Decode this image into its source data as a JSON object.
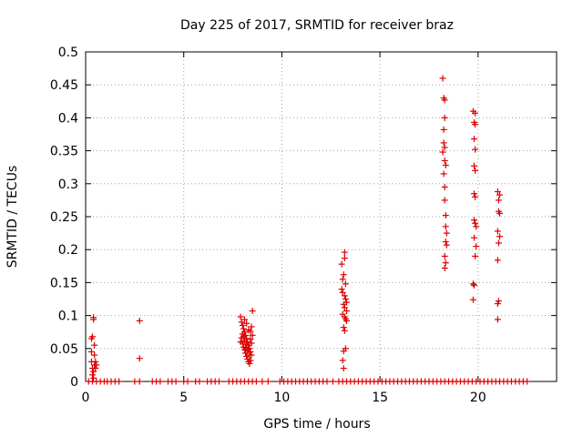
{
  "chart_data": {
    "type": "scatter",
    "title": "Day 225 of 2017, SRMTID for receiver braz",
    "xlabel": "GPS time / hours",
    "ylabel": "SRMTID / TECUs",
    "xlim": [
      0,
      24
    ],
    "ylim": [
      0,
      0.5
    ],
    "xticks": [
      0,
      5,
      10,
      15,
      20
    ],
    "xtick_labels": [
      "0",
      "5",
      "10",
      "15",
      "20"
    ],
    "yticks": [
      0,
      0.05,
      0.1,
      0.15,
      0.2,
      0.25,
      0.3,
      0.35,
      0.4,
      0.45,
      0.5
    ],
    "ytick_labels": [
      "0",
      "0.05",
      "0.1",
      "0.15",
      "0.2",
      "0.25",
      "0.3",
      "0.35",
      "0.4",
      "0.45",
      "0.5"
    ],
    "grid": true,
    "marker": "+",
    "marker_color": "#dd0000",
    "series": [
      {
        "name": "SRMTID",
        "points": [
          [
            0.15,
            0.0
          ],
          [
            0.35,
            0.0
          ],
          [
            0.55,
            0.0
          ],
          [
            0.75,
            0.0
          ],
          [
            0.95,
            0.0
          ],
          [
            1.1,
            0.0
          ],
          [
            1.3,
            0.0
          ],
          [
            1.5,
            0.0
          ],
          [
            1.7,
            0.0
          ],
          [
            2.5,
            0.0
          ],
          [
            2.75,
            0.0
          ],
          [
            3.4,
            0.0
          ],
          [
            3.6,
            0.0
          ],
          [
            3.8,
            0.0
          ],
          [
            4.2,
            0.0
          ],
          [
            4.4,
            0.0
          ],
          [
            4.6,
            0.0
          ],
          [
            5.0,
            0.0
          ],
          [
            5.2,
            0.0
          ],
          [
            5.6,
            0.0
          ],
          [
            5.8,
            0.0
          ],
          [
            6.2,
            0.0
          ],
          [
            6.4,
            0.0
          ],
          [
            6.6,
            0.0
          ],
          [
            6.8,
            0.0
          ],
          [
            7.3,
            0.0
          ],
          [
            7.5,
            0.0
          ],
          [
            7.7,
            0.0
          ],
          [
            7.9,
            0.0
          ],
          [
            8.1,
            0.0
          ],
          [
            8.3,
            0.0
          ],
          [
            8.5,
            0.0
          ],
          [
            8.7,
            0.0
          ],
          [
            9.0,
            0.0
          ],
          [
            9.3,
            0.0
          ],
          [
            9.9,
            0.0
          ],
          [
            10.1,
            0.0
          ],
          [
            10.3,
            0.0
          ],
          [
            10.5,
            0.0
          ],
          [
            10.7,
            0.0
          ],
          [
            10.9,
            0.0
          ],
          [
            11.1,
            0.0
          ],
          [
            11.3,
            0.0
          ],
          [
            11.5,
            0.0
          ],
          [
            11.7,
            0.0
          ],
          [
            11.9,
            0.0
          ],
          [
            12.1,
            0.0
          ],
          [
            12.3,
            0.0
          ],
          [
            12.6,
            0.0
          ],
          [
            12.9,
            0.0
          ],
          [
            13.1,
            0.0
          ],
          [
            13.3,
            0.0
          ],
          [
            13.5,
            0.0
          ],
          [
            13.7,
            0.0
          ],
          [
            13.9,
            0.0
          ],
          [
            14.1,
            0.0
          ],
          [
            14.3,
            0.0
          ],
          [
            14.5,
            0.0
          ],
          [
            14.7,
            0.0
          ],
          [
            14.9,
            0.0
          ],
          [
            15.1,
            0.0
          ],
          [
            15.3,
            0.0
          ],
          [
            15.5,
            0.0
          ],
          [
            15.7,
            0.0
          ],
          [
            15.9,
            0.0
          ],
          [
            16.1,
            0.0
          ],
          [
            16.3,
            0.0
          ],
          [
            16.5,
            0.0
          ],
          [
            16.7,
            0.0
          ],
          [
            16.9,
            0.0
          ],
          [
            17.1,
            0.0
          ],
          [
            17.3,
            0.0
          ],
          [
            17.5,
            0.0
          ],
          [
            17.7,
            0.0
          ],
          [
            17.9,
            0.0
          ],
          [
            18.1,
            0.0
          ],
          [
            18.3,
            0.0
          ],
          [
            18.5,
            0.0
          ],
          [
            18.7,
            0.0
          ],
          [
            18.9,
            0.0
          ],
          [
            19.1,
            0.0
          ],
          [
            19.3,
            0.0
          ],
          [
            19.5,
            0.0
          ],
          [
            19.7,
            0.0
          ],
          [
            19.9,
            0.0
          ],
          [
            20.1,
            0.0
          ],
          [
            20.3,
            0.0
          ],
          [
            20.5,
            0.0
          ],
          [
            20.7,
            0.0
          ],
          [
            20.9,
            0.0
          ],
          [
            21.1,
            0.0
          ],
          [
            21.3,
            0.0
          ],
          [
            21.5,
            0.0
          ],
          [
            21.7,
            0.0
          ],
          [
            21.9,
            0.0
          ],
          [
            22.1,
            0.0
          ],
          [
            22.3,
            0.0
          ],
          [
            22.5,
            0.0
          ],
          [
            0.3,
            0.065
          ],
          [
            0.35,
            0.068
          ],
          [
            0.4,
            0.097
          ],
          [
            0.4,
            0.094
          ],
          [
            0.3,
            0.03
          ],
          [
            0.35,
            0.02
          ],
          [
            0.4,
            0.015
          ],
          [
            0.45,
            0.025
          ],
          [
            0.5,
            0.03
          ],
          [
            0.45,
            0.04
          ],
          [
            0.5,
            0.02
          ],
          [
            0.55,
            0.025
          ],
          [
            0.35,
            0.01
          ],
          [
            0.4,
            0.005
          ],
          [
            0.3,
            0.045
          ],
          [
            0.45,
            0.055
          ],
          [
            2.75,
            0.092
          ],
          [
            2.75,
            0.035
          ],
          [
            7.9,
            0.098
          ],
          [
            7.95,
            0.09
          ],
          [
            8.0,
            0.085
          ],
          [
            8.05,
            0.08
          ],
          [
            8.1,
            0.075
          ],
          [
            8.15,
            0.07
          ],
          [
            8.2,
            0.065
          ],
          [
            8.25,
            0.06
          ],
          [
            8.3,
            0.055
          ],
          [
            8.35,
            0.05
          ],
          [
            8.4,
            0.045
          ],
          [
            8.45,
            0.04
          ],
          [
            8.5,
            0.107
          ],
          [
            8.45,
            0.083
          ],
          [
            8.4,
            0.076
          ],
          [
            7.95,
            0.066
          ],
          [
            8.0,
            0.058
          ],
          [
            8.05,
            0.052
          ],
          [
            8.1,
            0.048
          ],
          [
            8.15,
            0.043
          ],
          [
            8.2,
            0.038
          ],
          [
            8.25,
            0.034
          ],
          [
            8.3,
            0.03
          ],
          [
            8.35,
            0.027
          ],
          [
            8.0,
            0.072
          ],
          [
            8.1,
            0.062
          ],
          [
            8.2,
            0.056
          ],
          [
            8.3,
            0.05
          ],
          [
            8.4,
            0.064
          ],
          [
            8.5,
            0.07
          ],
          [
            8.45,
            0.058
          ],
          [
            8.05,
            0.068
          ],
          [
            8.15,
            0.052
          ],
          [
            8.25,
            0.046
          ],
          [
            8.35,
            0.04
          ],
          [
            7.9,
            0.06
          ],
          [
            8.4,
            0.032
          ],
          [
            8.3,
            0.078
          ],
          [
            8.2,
            0.088
          ],
          [
            8.1,
            0.094
          ],
          [
            13.05,
            0.178
          ],
          [
            13.2,
            0.196
          ],
          [
            13.2,
            0.187
          ],
          [
            13.15,
            0.162
          ],
          [
            13.1,
            0.155
          ],
          [
            13.25,
            0.148
          ],
          [
            13.05,
            0.14
          ],
          [
            13.1,
            0.135
          ],
          [
            13.2,
            0.13
          ],
          [
            13.25,
            0.125
          ],
          [
            13.3,
            0.12
          ],
          [
            13.15,
            0.117
          ],
          [
            13.2,
            0.112
          ],
          [
            13.3,
            0.107
          ],
          [
            13.1,
            0.102
          ],
          [
            13.2,
            0.098
          ],
          [
            13.25,
            0.095
          ],
          [
            13.3,
            0.092
          ],
          [
            13.15,
            0.082
          ],
          [
            13.2,
            0.077
          ],
          [
            13.25,
            0.05
          ],
          [
            13.15,
            0.046
          ],
          [
            13.1,
            0.032
          ],
          [
            13.15,
            0.02
          ],
          [
            18.2,
            0.46
          ],
          [
            18.25,
            0.43
          ],
          [
            18.3,
            0.427
          ],
          [
            18.3,
            0.4
          ],
          [
            18.25,
            0.382
          ],
          [
            18.25,
            0.362
          ],
          [
            18.3,
            0.355
          ],
          [
            18.2,
            0.348
          ],
          [
            18.3,
            0.335
          ],
          [
            18.35,
            0.328
          ],
          [
            18.25,
            0.315
          ],
          [
            18.3,
            0.295
          ],
          [
            18.3,
            0.275
          ],
          [
            18.35,
            0.252
          ],
          [
            18.35,
            0.235
          ],
          [
            18.4,
            0.225
          ],
          [
            18.35,
            0.212
          ],
          [
            18.4,
            0.207
          ],
          [
            18.3,
            0.19
          ],
          [
            18.35,
            0.18
          ],
          [
            18.3,
            0.172
          ],
          [
            19.75,
            0.41
          ],
          [
            19.85,
            0.407
          ],
          [
            19.8,
            0.393
          ],
          [
            19.85,
            0.39
          ],
          [
            19.8,
            0.368
          ],
          [
            19.85,
            0.352
          ],
          [
            19.8,
            0.327
          ],
          [
            19.85,
            0.32
          ],
          [
            19.8,
            0.285
          ],
          [
            19.85,
            0.28
          ],
          [
            19.8,
            0.245
          ],
          [
            19.85,
            0.24
          ],
          [
            19.9,
            0.235
          ],
          [
            19.8,
            0.218
          ],
          [
            19.9,
            0.205
          ],
          [
            19.85,
            0.19
          ],
          [
            19.75,
            0.148
          ],
          [
            19.8,
            0.146
          ],
          [
            19.75,
            0.124
          ],
          [
            21.0,
            0.288
          ],
          [
            21.1,
            0.283
          ],
          [
            21.05,
            0.275
          ],
          [
            21.05,
            0.258
          ],
          [
            21.1,
            0.255
          ],
          [
            21.0,
            0.228
          ],
          [
            21.1,
            0.22
          ],
          [
            21.05,
            0.21
          ],
          [
            21.0,
            0.184
          ],
          [
            21.05,
            0.122
          ],
          [
            21.0,
            0.118
          ],
          [
            21.0,
            0.094
          ]
        ]
      }
    ]
  }
}
